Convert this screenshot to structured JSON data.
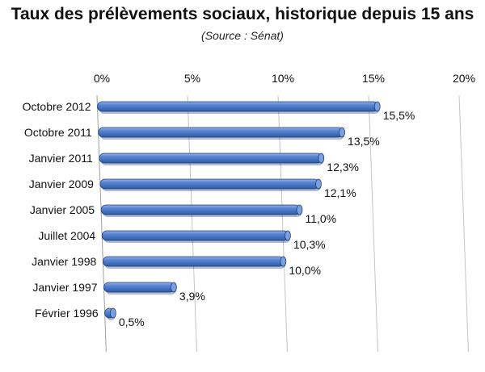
{
  "chart_data": {
    "type": "bar",
    "orientation": "horizontal",
    "title": "Taux des prélèvements sociaux, historique depuis 15 ans",
    "subtitle": "(Source : Sénat)",
    "categories": [
      "Octobre 2012",
      "Octobre 2011",
      "Janvier 2011",
      "Janvier 2009",
      "Janvier 2005",
      "Juillet 2004",
      "Janvier 1998",
      "Janvier 1997",
      "Février 1996"
    ],
    "values": [
      15.5,
      13.5,
      12.3,
      12.1,
      11.0,
      10.3,
      10.0,
      3.9,
      0.5
    ],
    "value_labels": [
      "15,5%",
      "13,5%",
      "12,3%",
      "12,1%",
      "11,0%",
      "10,3%",
      "10,0%",
      "3,9%",
      "0,5%"
    ],
    "xticks": [
      0,
      5,
      10,
      15,
      20
    ],
    "xtick_labels": [
      "0%",
      "5%",
      "10%",
      "15%",
      "20%"
    ],
    "xlim": [
      0,
      20
    ],
    "xaxis_position": "top",
    "grid": true,
    "style": "3d-cylinder",
    "bar_color": "#4a76c4",
    "bar_edge_color": "#1f3f7a"
  }
}
